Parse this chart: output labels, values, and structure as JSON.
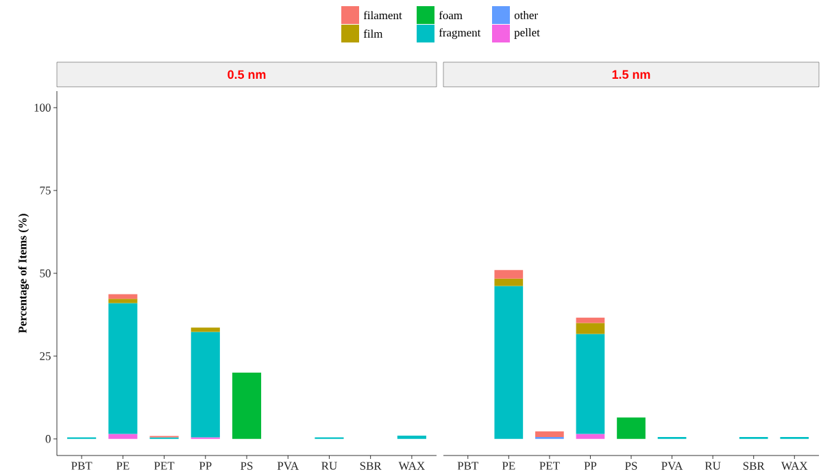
{
  "chart_data": [
    {
      "type": "bar",
      "title": "0.5 nm",
      "ylabel": "Percentage of Items (%)",
      "stacked": true,
      "categories": [
        "PBT",
        "PE",
        "PET",
        "PP",
        "PS",
        "PVA",
        "RU",
        "SBR",
        "WAX"
      ],
      "ylim": [
        -5,
        105
      ],
      "yticks": [
        0,
        25,
        50,
        75,
        100
      ],
      "series": [
        {
          "color": "#f564e3",
          "values": [
            null,
            1.5,
            null,
            0.5,
            null,
            null,
            null,
            null,
            null
          ]
        },
        {
          "color": "#00bfc4",
          "values": [
            0.5,
            39.5,
            0.5,
            31.8,
            null,
            null,
            0.5,
            null,
            1.0
          ]
        },
        {
          "color": "#00ba38",
          "values": [
            null,
            null,
            null,
            null,
            20,
            null,
            null,
            null,
            null
          ]
        },
        {
          "color": "#b79f00",
          "values": [
            null,
            1.3,
            null,
            1.3,
            null,
            null,
            null,
            null,
            null
          ]
        },
        {
          "color": "#f8766d",
          "values": [
            null,
            1.4,
            0.4,
            null,
            null,
            null,
            null,
            null,
            null
          ]
        }
      ]
    },
    {
      "type": "bar",
      "title": "1.5 nm",
      "stacked": true,
      "tick_labels": "x",
      "legend": "top",
      "categories": [
        "PBT",
        "PE",
        "PET",
        "PP",
        "PS",
        "PVA",
        "RU",
        "SBR",
        "WAX"
      ],
      "yticks": [
        0,
        25,
        50,
        75,
        100
      ],
      "series": [
        {
          "name": "pellet",
          "color": "#f564e3",
          "values": [
            null,
            null,
            null,
            1.5,
            null,
            null,
            null,
            null,
            null
          ]
        },
        {
          "name": "other",
          "color": "#619cff",
          "values": [
            null,
            null,
            0.6,
            null,
            null,
            null,
            null,
            null,
            null
          ]
        },
        {
          "name": "fragment",
          "color": "#00bfc4",
          "values": [
            null,
            46.2,
            null,
            30.2,
            null,
            0.6,
            null,
            0.6,
            0.6
          ]
        },
        {
          "name": "foam",
          "color": "#00ba38",
          "values": [
            null,
            null,
            null,
            null,
            6.5,
            null,
            null,
            null,
            null
          ]
        },
        {
          "name": "film",
          "color": "#b79f00",
          "values": [
            null,
            2.2,
            null,
            3.3,
            null,
            null,
            null,
            null,
            null
          ]
        },
        {
          "name": "filament",
          "color": "#f8766d",
          "values": [
            null,
            2.6,
            1.7,
            1.6,
            null,
            null,
            null,
            null,
            null
          ]
        }
      ]
    }
  ]
}
